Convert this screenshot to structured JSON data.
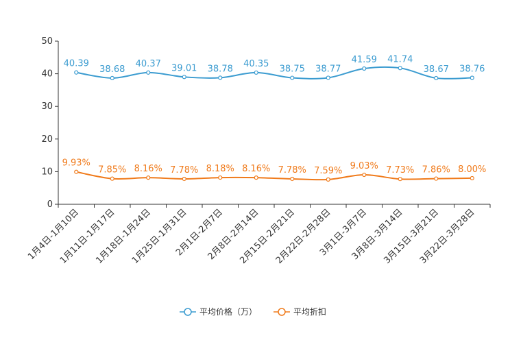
{
  "chart_data": {
    "type": "line",
    "title": "",
    "xlabel": "",
    "ylabel": "",
    "ylim": [
      0,
      50
    ],
    "yticks": [
      0,
      10,
      20,
      30,
      40,
      50
    ],
    "grid": false,
    "legend_position": "bottom",
    "categories": [
      "1月4日-1月10日",
      "1月11日-1月17日",
      "1月18日-1月24日",
      "1月25日-1月31日",
      "2月1日-2月7日",
      "2月8日-2月14日",
      "2月15日-2月21日",
      "2月22日-2月28日",
      "3月1日-3月7日",
      "3月8日-3月14日",
      "3月15日-3月21日",
      "3月22日-3月28日"
    ],
    "series": [
      {
        "name": "平均价格（万）",
        "color": "#3a9bd0",
        "values": [
          40.39,
          38.68,
          40.37,
          39.01,
          38.78,
          40.35,
          38.75,
          38.77,
          41.59,
          41.74,
          38.67,
          38.76
        ],
        "labels": [
          "40.39",
          "38.68",
          "40.37",
          "39.01",
          "38.78",
          "40.35",
          "38.75",
          "38.77",
          "41.59",
          "41.74",
          "38.67",
          "38.76"
        ]
      },
      {
        "name": "平均折扣",
        "color": "#f07a1a",
        "values": [
          9.93,
          7.85,
          8.16,
          7.78,
          8.18,
          8.16,
          7.78,
          7.59,
          9.03,
          7.73,
          7.86,
          8.0
        ],
        "labels": [
          "9.93%",
          "7.85%",
          "8.16%",
          "7.78%",
          "8.18%",
          "8.16%",
          "7.78%",
          "7.59%",
          "9.03%",
          "7.73%",
          "7.86%",
          "8.00%"
        ]
      }
    ]
  }
}
